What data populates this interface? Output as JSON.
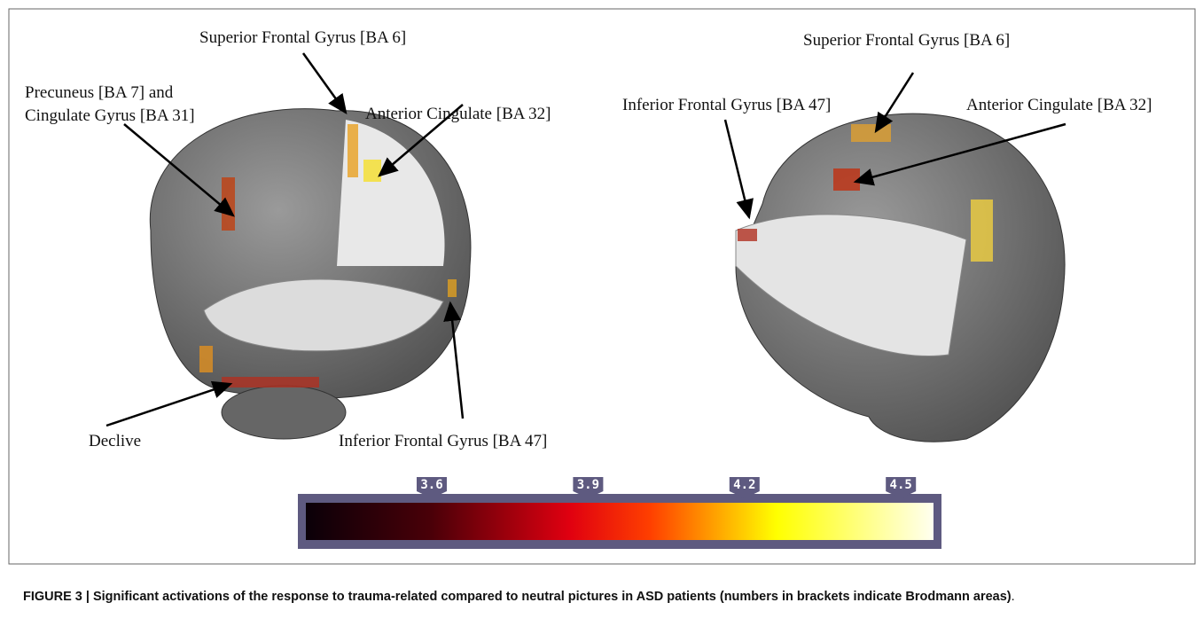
{
  "figure": {
    "left_panel": {
      "labels": [
        "Superior Frontal Gyrus [BA 6]",
        "Precuneus [BA 7] and",
        "Cingulate Gyrus [BA 31]",
        "Anterior Cingulate [BA 32]",
        "Declive",
        "Inferior Frontal Gyrus [BA 47]"
      ]
    },
    "right_panel": {
      "labels": [
        "Superior Frontal Gyrus [BA 6]",
        "Inferior Frontal Gyrus [BA 47]",
        "Anterior Cingulate [BA 32]"
      ]
    },
    "colorbar": {
      "ticks": [
        3.6,
        3.9,
        4.2,
        4.5
      ]
    },
    "caption": {
      "text": "FIGURE 3 | Significant activations of the response to trauma-related compared to neutral pictures in ASD patients (numbers in brackets indicate Brodmann areas)",
      "end": "."
    }
  }
}
